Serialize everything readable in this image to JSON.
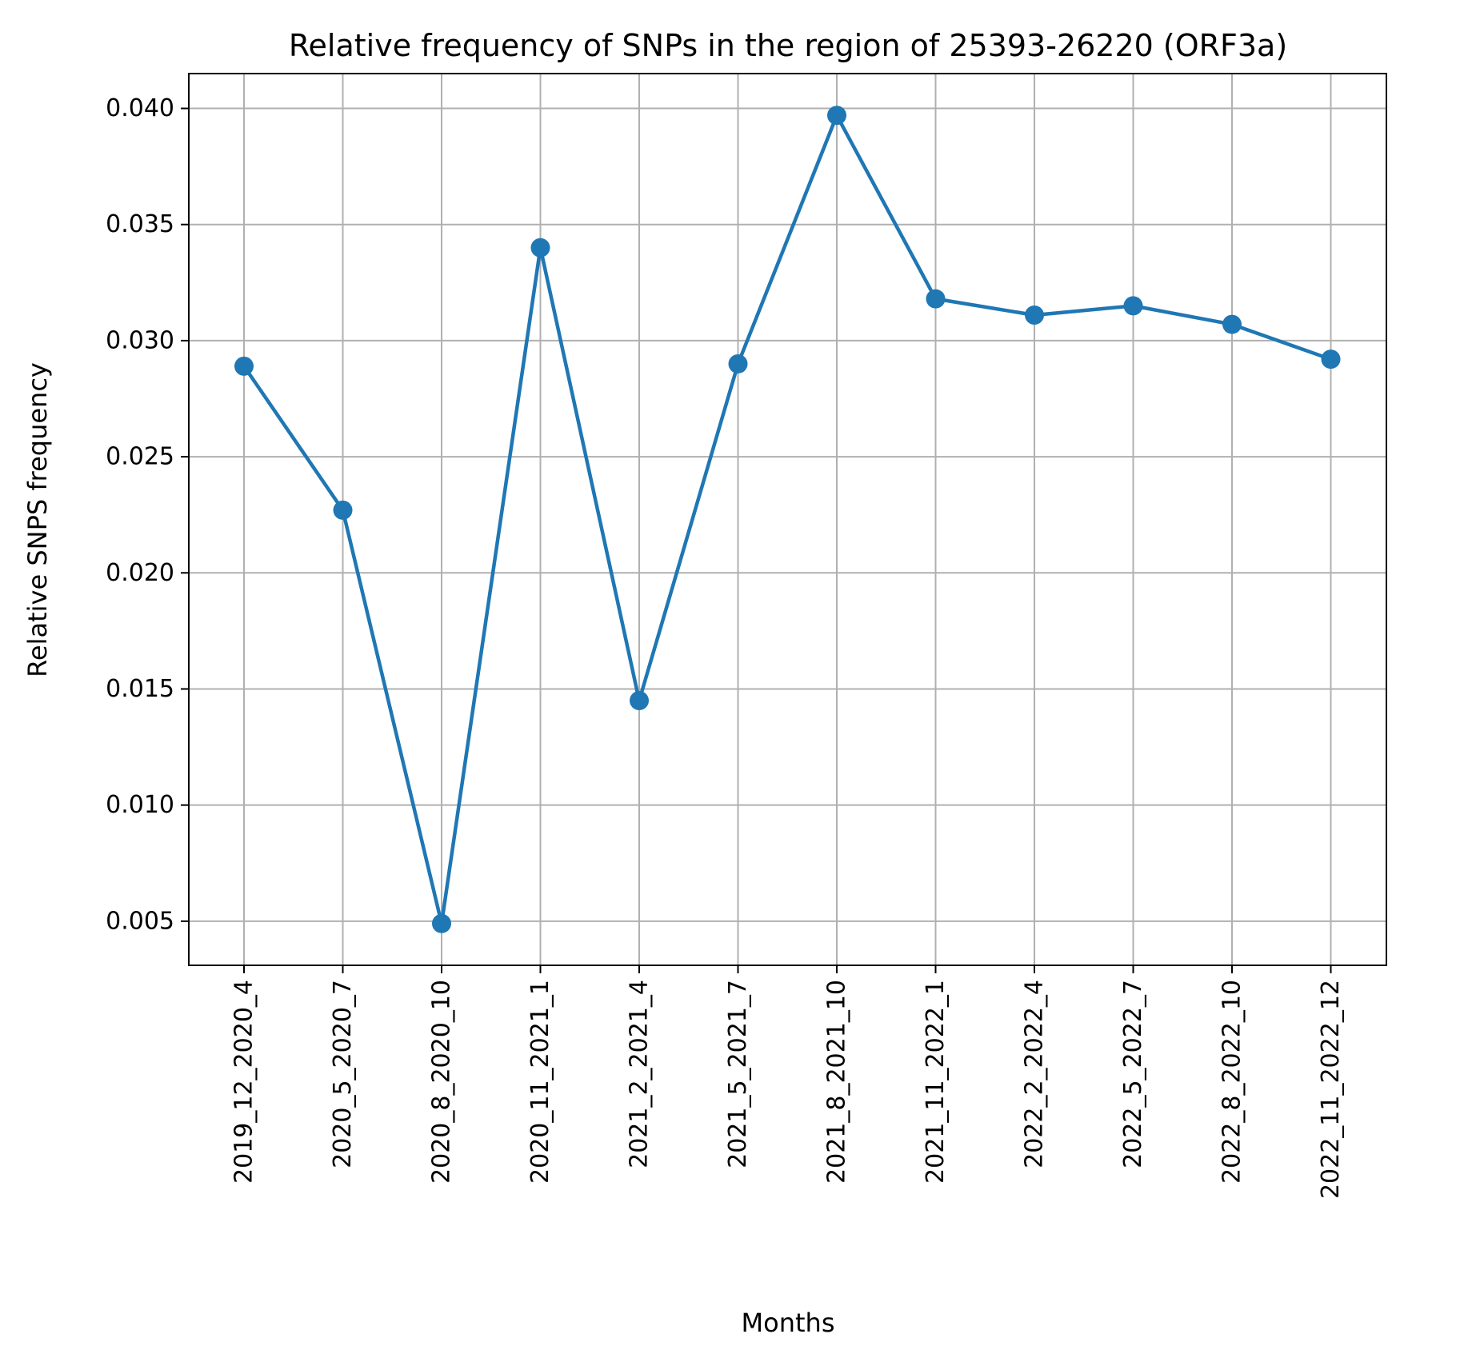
{
  "chart_data": {
    "type": "line",
    "title": "Relative frequency of SNPs in the region of 25393-26220 (ORF3a)",
    "xlabel": "Months",
    "ylabel": "Relative SNPS frequency",
    "categories": [
      "2019_12_2020_4",
      "2020_5_2020_7",
      "2020_8_2020_10",
      "2020_11_2021_1",
      "2021_2_2021_4",
      "2021_5_2021_7",
      "2021_8_2021_10",
      "2021_11_2022_1",
      "2022_2_2022_4",
      "2022_5_2022_7",
      "2022_8_2022_10",
      "2022_11_2022_12"
    ],
    "series": [
      {
        "values": [
          0.0289,
          0.0227,
          0.0049,
          0.034,
          0.0145,
          0.029,
          0.0397,
          0.0318,
          0.0311,
          0.0315,
          0.0307,
          0.0292
        ],
        "color": "#1f77b4"
      }
    ],
    "ylim": [
      0.0031,
      0.0415
    ],
    "yticks": [
      "0.005",
      "0.010",
      "0.015",
      "0.020",
      "0.025",
      "0.030",
      "0.035",
      "0.040"
    ],
    "ytick_values": [
      0.005,
      0.01,
      0.015,
      0.02,
      0.025,
      0.03,
      0.035,
      0.04
    ],
    "grid": true,
    "marker": "circle"
  }
}
